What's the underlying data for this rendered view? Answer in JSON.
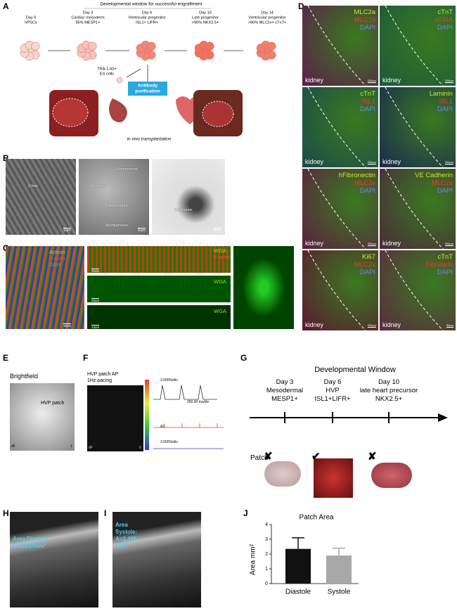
{
  "panel_letters": [
    "A",
    "B",
    "C",
    "D",
    "E",
    "F",
    "G",
    "H",
    "I",
    "J"
  ],
  "panel_a": {
    "title": "Developmental window for successful engraftment",
    "stages": [
      [
        "Day 0",
        "hPSCs"
      ],
      [
        "Day 3",
        "Cardiac mesoderm",
        "95% MESP1+"
      ],
      [
        "Day 6",
        "Ventricular progenitor",
        "ISL1+ LIFR+"
      ],
      [
        "Day 10",
        "Late progenitor",
        ">90% NKX2.5+"
      ],
      [
        "Day 14",
        "Ventricular progenitor",
        ">90% MLC2v+ cTnT+"
      ]
    ],
    "excluded": [
      "TRA-1-60+",
      "ES cells"
    ],
    "purification": [
      "Antibody",
      "purification"
    ],
    "transplant": "in vivo transplantation"
  },
  "panel_b": {
    "labels": [
      "Z-line",
      "Nucleus",
      "Desmosome",
      "Mitochondria",
      "Myofilaments",
      "Capillaries"
    ],
    "scales": [
      "1um",
      "1um",
      "5um"
    ]
  },
  "panel_c": {
    "main": [
      "Actinin",
      "F-actin",
      "DAPI"
    ],
    "top": [
      "WGA",
      "F-actin"
    ],
    "wga": "WGA",
    "scales": [
      "10um",
      "10um",
      "10um",
      "10um"
    ]
  },
  "panel_d": {
    "tissue": "kidney",
    "tiles": [
      {
        "labels": [
          "MLC2a",
          "MLC2v",
          "DAPI"
        ],
        "scale": "200µm"
      },
      {
        "labels": [
          "cTnT",
          "αSMA",
          "DAPI"
        ],
        "scale": "200µm"
      },
      {
        "labels": [
          "cTnT",
          "ISL1",
          "DAPI"
        ],
        "scale": "200µm"
      },
      {
        "labels": [
          "Laminin",
          "ISL1",
          "DAPI"
        ],
        "scale": "200µm"
      },
      {
        "labels": [
          "hFibronectin",
          "MLC2v",
          "DAPI"
        ],
        "scale": "200µm"
      },
      {
        "labels": [
          "VE Cadherin",
          "MLC2v",
          "DAPI"
        ],
        "scale": "200µm"
      },
      {
        "labels": [
          "Ki67",
          "MLC2v",
          "DAPI"
        ],
        "scale": "200µm"
      },
      {
        "labels": [
          "cTnT",
          "Fibrillarin",
          "DAPI"
        ],
        "scale": "50µm"
      }
    ],
    "label_colors": [
      "#c8e830",
      "#ff3030",
      "#7a7aff"
    ]
  },
  "panel_e": {
    "title": "Brightfield",
    "label": "HVP patch",
    "corner_left": "dF",
    "corner_right": "1"
  },
  "panel_f": {
    "title": [
      "HVP patch AP",
      "1Hz pacing"
    ],
    "scale_top": "3.000%/div",
    "time": "250.00 ms/div",
    "channel": "A1",
    "scale_bottom": "3.000%/div",
    "corner_left": "dF",
    "corner_right": "0"
  },
  "panel_g": {
    "title": "Developmental Window",
    "columns": [
      [
        "Day 3",
        "Mesodermal",
        "MESP1+"
      ],
      [
        "Day 6",
        "HVP",
        "ISL1+LIFR+"
      ],
      [
        "Day 10",
        "late heart precursor",
        "NKX2.5+"
      ]
    ],
    "row_label": "Patch",
    "outcomes": [
      "✘",
      "✔",
      "✘"
    ]
  },
  "panel_h": [
    "Area Diastole:",
    "A=3,237mm²"
  ],
  "panel_i": [
    "Area",
    "Systole:",
    "A=2,486",
    "mm²"
  ],
  "panel_j": {
    "type": "bar",
    "title": "Patch Area",
    "y_label": "Area mm²",
    "categories": [
      "Diastole",
      "Systole"
    ],
    "values": [
      2.35,
      1.9
    ],
    "errors": [
      0.75,
      0.5
    ],
    "colors": [
      "#111111",
      "#a8a8a8"
    ],
    "ylim": [
      0,
      4
    ],
    "yticks": [
      0,
      1,
      2,
      3,
      4
    ]
  }
}
